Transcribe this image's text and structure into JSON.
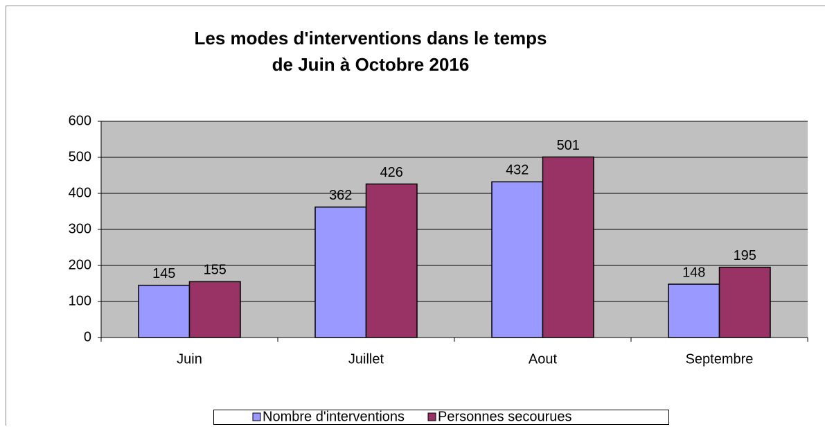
{
  "chart_data": {
    "type": "bar",
    "title": [
      "Les modes d'interventions dans le temps",
      "de Juin à Octobre 2016"
    ],
    "categories": [
      "Juin",
      "Juillet",
      "Aout",
      "Septembre"
    ],
    "series": [
      {
        "name": "Nombre d'interventions",
        "color": "#9999ff",
        "values": [
          145,
          362,
          432,
          148
        ]
      },
      {
        "name": "Personnes secourues",
        "color": "#993366",
        "values": [
          155,
          426,
          501,
          195
        ]
      }
    ],
    "ylim": [
      0,
      600
    ],
    "yticks": [
      0,
      100,
      200,
      300,
      400,
      500,
      600
    ],
    "grid": true,
    "legend": "bottom"
  }
}
